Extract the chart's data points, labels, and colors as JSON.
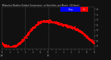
{
  "bg_color": "#111111",
  "plot_bg_color": "#111111",
  "dot_color": "#ff0000",
  "legend_blue_color": "#0000ff",
  "legend_red_color": "#ff0000",
  "legend_blue_label": "Temp",
  "legend_red_label": "HI",
  "title_line1": "Milwaukee Weather Outdoor Temperature",
  "title_line2": "vs Heat Index",
  "title_line3": "per Minute",
  "title_line4": "(24 Hours)",
  "title_color": "#cccccc",
  "title_fontsize": 2.5,
  "ylim": [
    42,
    82
  ],
  "xlim": [
    0,
    1440
  ],
  "ytick_values": [
    45,
    50,
    55,
    60,
    65,
    70,
    75,
    80
  ],
  "ytick_color": "#999999",
  "xtick_color": "#999999",
  "xtick_positions": [
    0,
    60,
    120,
    180,
    240,
    300,
    360,
    420,
    480,
    540,
    600,
    660,
    720,
    780,
    840,
    900,
    960,
    1020,
    1080,
    1140,
    1200,
    1260,
    1320,
    1380,
    1440
  ],
  "vline_positions": [
    360,
    720
  ],
  "vline_color": "#888888",
  "dot_size": 1.2,
  "spine_color": "#555555"
}
